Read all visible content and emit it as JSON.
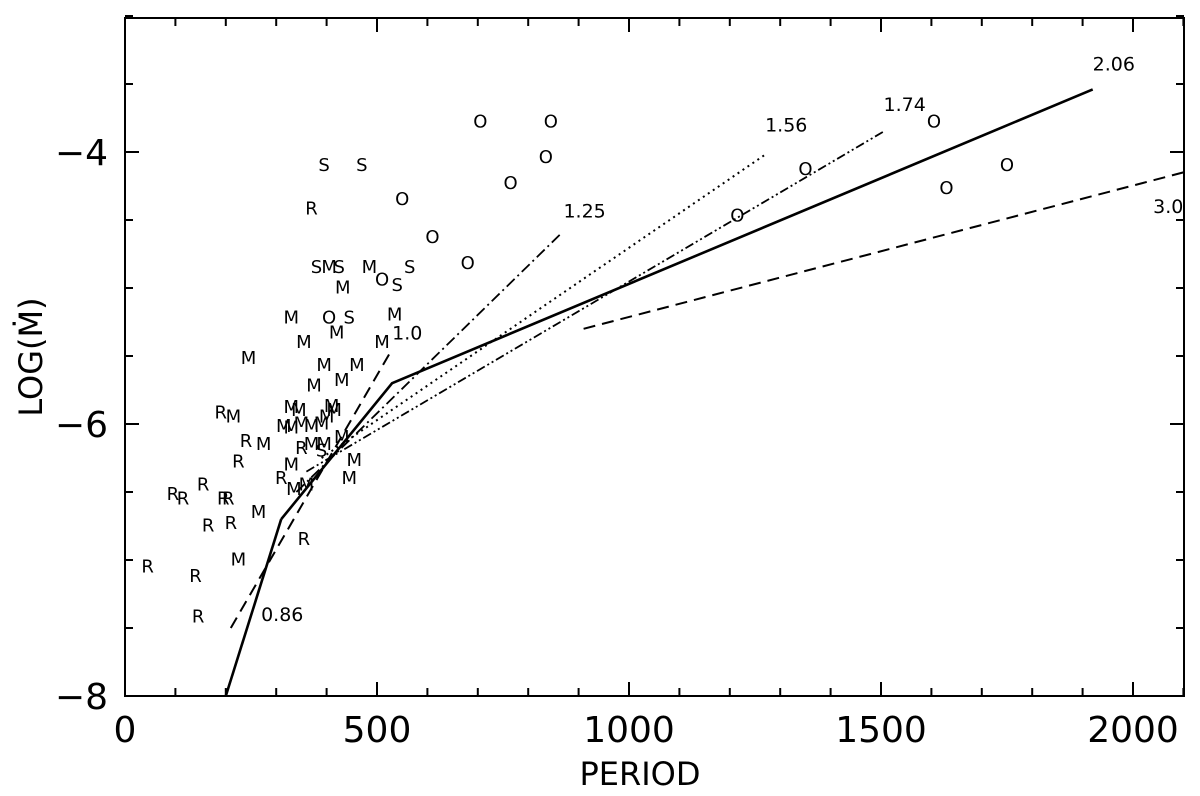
{
  "chart_data": {
    "type": "scatter",
    "title": "",
    "xlabel": "PERIOD",
    "ylabel": "LOG(Ṁ)",
    "xlim": [
      0,
      2100
    ],
    "ylim": [
      -8,
      -3
    ],
    "x_ticks": [
      0,
      500,
      1000,
      1500,
      2000
    ],
    "y_ticks": [
      -8,
      -6,
      -4
    ],
    "grid": false,
    "points": [
      {
        "x": 95,
        "y": -6.52,
        "label": "R"
      },
      {
        "x": 115,
        "y": -6.55,
        "label": "R"
      },
      {
        "x": 155,
        "y": -6.45,
        "label": "R"
      },
      {
        "x": 195,
        "y": -6.55,
        "label": "R"
      },
      {
        "x": 205,
        "y": -6.55,
        "label": "R"
      },
      {
        "x": 165,
        "y": -6.75,
        "label": "R"
      },
      {
        "x": 210,
        "y": -6.73,
        "label": "R"
      },
      {
        "x": 45,
        "y": -7.05,
        "label": "R"
      },
      {
        "x": 140,
        "y": -7.12,
        "label": "R"
      },
      {
        "x": 145,
        "y": -7.42,
        "label": "R"
      },
      {
        "x": 190,
        "y": -5.92,
        "label": "R"
      },
      {
        "x": 225,
        "y": -6.28,
        "label": "R"
      },
      {
        "x": 240,
        "y": -6.13,
        "label": "R"
      },
      {
        "x": 370,
        "y": -4.42,
        "label": "R"
      },
      {
        "x": 350,
        "y": -6.18,
        "label": "R"
      },
      {
        "x": 310,
        "y": -6.4,
        "label": "R"
      },
      {
        "x": 355,
        "y": -6.85,
        "label": "R"
      },
      {
        "x": 215,
        "y": -5.95,
        "label": "M"
      },
      {
        "x": 245,
        "y": -5.52,
        "label": "M"
      },
      {
        "x": 275,
        "y": -6.15,
        "label": "M"
      },
      {
        "x": 265,
        "y": -6.65,
        "label": "M"
      },
      {
        "x": 225,
        "y": -7.0,
        "label": "M"
      },
      {
        "x": 330,
        "y": -5.22,
        "label": "M"
      },
      {
        "x": 355,
        "y": -5.4,
        "label": "M"
      },
      {
        "x": 375,
        "y": -5.72,
        "label": "M"
      },
      {
        "x": 395,
        "y": -5.57,
        "label": "M"
      },
      {
        "x": 420,
        "y": -5.33,
        "label": "M"
      },
      {
        "x": 430,
        "y": -5.68,
        "label": "M"
      },
      {
        "x": 432,
        "y": -5.0,
        "label": "M"
      },
      {
        "x": 405,
        "y": -4.85,
        "label": "M"
      },
      {
        "x": 485,
        "y": -4.85,
        "label": "M"
      },
      {
        "x": 510,
        "y": -5.4,
        "label": "M"
      },
      {
        "x": 535,
        "y": -5.2,
        "label": "M"
      },
      {
        "x": 460,
        "y": -5.57,
        "label": "M"
      },
      {
        "x": 330,
        "y": -5.88,
        "label": "M"
      },
      {
        "x": 345,
        "y": -5.9,
        "label": "M"
      },
      {
        "x": 315,
        "y": -6.02,
        "label": "M"
      },
      {
        "x": 330,
        "y": -6.03,
        "label": "M"
      },
      {
        "x": 350,
        "y": -6.0,
        "label": "M"
      },
      {
        "x": 370,
        "y": -6.02,
        "label": "M"
      },
      {
        "x": 390,
        "y": -6.0,
        "label": "M"
      },
      {
        "x": 410,
        "y": -5.87,
        "label": "M"
      },
      {
        "x": 400,
        "y": -5.95,
        "label": "M"
      },
      {
        "x": 415,
        "y": -5.9,
        "label": "M"
      },
      {
        "x": 370,
        "y": -6.15,
        "label": "M"
      },
      {
        "x": 395,
        "y": -6.15,
        "label": "M"
      },
      {
        "x": 430,
        "y": -6.1,
        "label": "M"
      },
      {
        "x": 330,
        "y": -6.3,
        "label": "M"
      },
      {
        "x": 335,
        "y": -6.48,
        "label": "M"
      },
      {
        "x": 360,
        "y": -6.45,
        "label": "M"
      },
      {
        "x": 455,
        "y": -6.27,
        "label": "M"
      },
      {
        "x": 445,
        "y": -6.4,
        "label": "M"
      },
      {
        "x": 390,
        "y": -6.2,
        "label": "S"
      },
      {
        "x": 395,
        "y": -4.1,
        "label": "S"
      },
      {
        "x": 470,
        "y": -4.1,
        "label": "S"
      },
      {
        "x": 380,
        "y": -4.85,
        "label": "S"
      },
      {
        "x": 425,
        "y": -4.85,
        "label": "S"
      },
      {
        "x": 565,
        "y": -4.85,
        "label": "S"
      },
      {
        "x": 540,
        "y": -4.98,
        "label": "S"
      },
      {
        "x": 445,
        "y": -5.22,
        "label": "S"
      },
      {
        "x": 705,
        "y": -3.78,
        "label": "O"
      },
      {
        "x": 845,
        "y": -3.78,
        "label": "O"
      },
      {
        "x": 835,
        "y": -4.04,
        "label": "O"
      },
      {
        "x": 765,
        "y": -4.23,
        "label": "O"
      },
      {
        "x": 550,
        "y": -4.35,
        "label": "O"
      },
      {
        "x": 610,
        "y": -4.63,
        "label": "O"
      },
      {
        "x": 680,
        "y": -4.82,
        "label": "O"
      },
      {
        "x": 510,
        "y": -4.94,
        "label": "O"
      },
      {
        "x": 405,
        "y": -5.22,
        "label": "O"
      },
      {
        "x": 1215,
        "y": -4.47,
        "label": "O"
      },
      {
        "x": 1350,
        "y": -4.13,
        "label": "O"
      },
      {
        "x": 1605,
        "y": -3.78,
        "label": "O"
      },
      {
        "x": 1630,
        "y": -4.27,
        "label": "O"
      },
      {
        "x": 1750,
        "y": -4.1,
        "label": "O"
      }
    ],
    "lines": [
      {
        "label": "0.86",
        "style": "solid",
        "points": [
          [
            200,
            -8.0
          ],
          [
            310,
            -6.7
          ]
        ]
      },
      {
        "label": "2.06",
        "style": "solid",
        "points": [
          [
            310,
            -6.7
          ],
          [
            530,
            -5.7
          ],
          [
            1920,
            -3.54
          ]
        ]
      },
      {
        "label": "1.0",
        "style": "dashed",
        "points": [
          [
            210,
            -7.5
          ],
          [
            530,
            -5.45
          ]
        ]
      },
      {
        "label": "3.0",
        "style": "dashed",
        "points": [
          [
            910,
            -5.3
          ],
          [
            2100,
            -4.15
          ]
        ]
      },
      {
        "label": "1.25",
        "style": "dashdot",
        "points": [
          [
            340,
            -6.5
          ],
          [
            865,
            -4.6
          ]
        ]
      },
      {
        "label": "1.56",
        "style": "dotted",
        "points": [
          [
            390,
            -6.25
          ],
          [
            1270,
            -4.02
          ]
        ]
      },
      {
        "label": "1.74",
        "style": "dashdotdot",
        "points": [
          [
            360,
            -6.35
          ],
          [
            1505,
            -3.85
          ]
        ]
      }
    ],
    "line_labels": [
      {
        "text": "0.86",
        "x": 270,
        "y": -7.45
      },
      {
        "text": "1.0",
        "x": 530,
        "y": -5.38
      },
      {
        "text": "1.25",
        "x": 870,
        "y": -4.48
      },
      {
        "text": "1.56",
        "x": 1270,
        "y": -3.85
      },
      {
        "text": "1.74",
        "x": 1505,
        "y": -3.7
      },
      {
        "text": "2.06",
        "x": 1920,
        "y": -3.4
      },
      {
        "text": "3.0",
        "x": 2040,
        "y": -4.45
      }
    ]
  }
}
